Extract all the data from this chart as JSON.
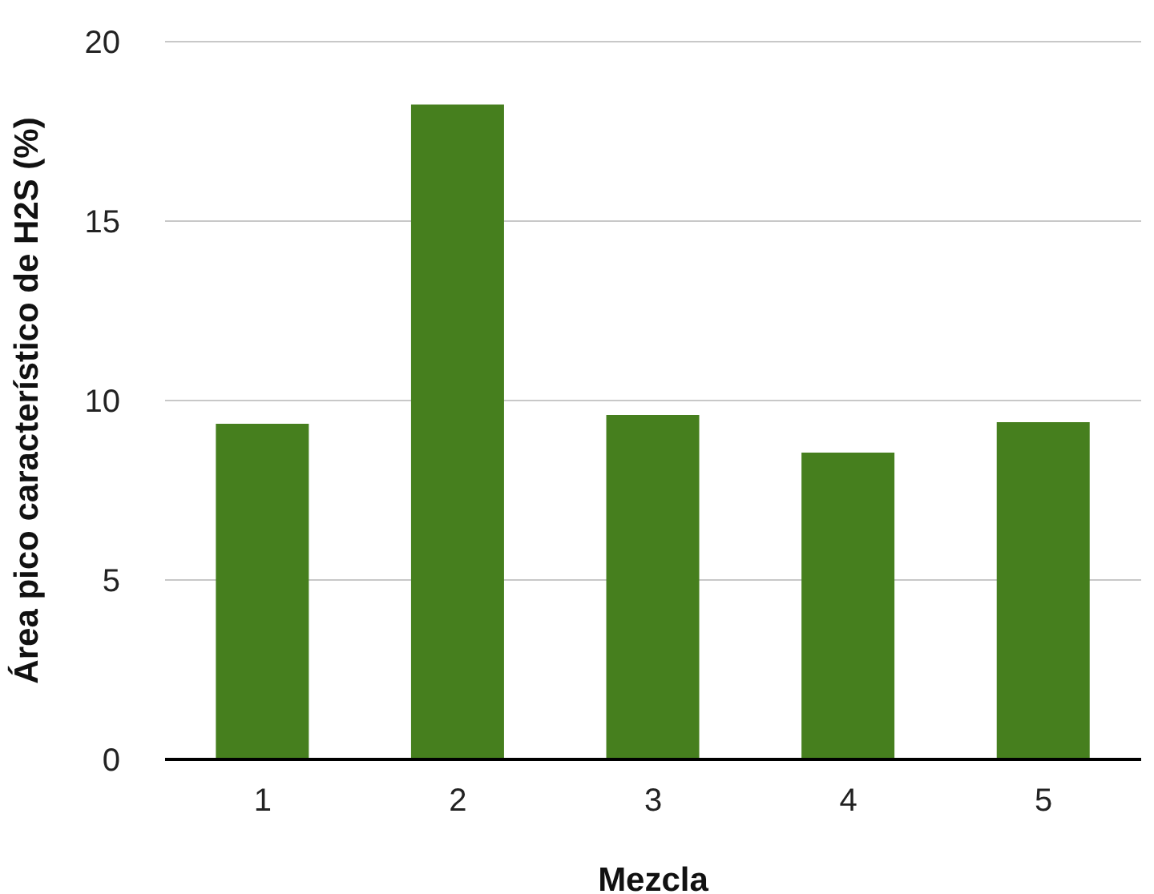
{
  "chart_data": {
    "type": "bar",
    "xlabel": "Mezcla",
    "ylabel": "Área pico característico  de H2S (%)",
    "categories": [
      "1",
      "2",
      "3",
      "4",
      "5"
    ],
    "values": [
      9.35,
      18.25,
      9.6,
      8.55,
      9.4
    ],
    "color": "#467f1e",
    "ylim": [
      0,
      20
    ],
    "yticks": [
      0,
      5,
      10,
      15,
      20
    ],
    "grid": "y"
  }
}
